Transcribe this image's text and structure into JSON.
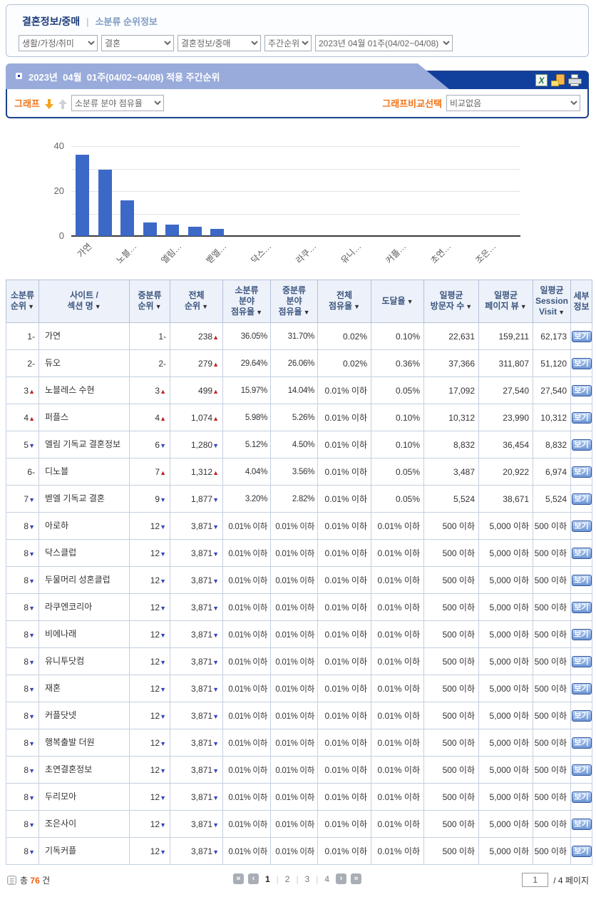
{
  "breadcrumb": {
    "category": "결혼정보/중매",
    "separator": "|",
    "section": "소분류 순위정보"
  },
  "filters": {
    "selects": [
      "생활/가정/취미",
      "결혼",
      "결혼정보/중매",
      "주간순위",
      "2023년 04월 01주(04/02~04/08)"
    ]
  },
  "panel": {
    "title": "2023년  04월  01주(04/02~04/08) 적용 주간순위",
    "icons": {
      "excel": "excel-icon",
      "excel_glyph": "X",
      "mail": "save-copy-icon",
      "print": "print-icon"
    },
    "graph_label": "그래프",
    "graph_select": "소분류 분야 점유율",
    "compare_label": "그래프비교선택",
    "compare_select": "비교없음"
  },
  "chart_data": {
    "type": "bar",
    "title": "",
    "xlabel": "",
    "ylabel": "",
    "categories": [
      "가연",
      "듀오",
      "노블레스 수현",
      "퍼플스",
      "엘림 기독교 결혼정보",
      "디노블",
      "벧엘 기독교 결혼",
      "아로하",
      "닥스클럽",
      "두물머리 성혼클럽",
      "라쿠엔코리아",
      "비에나래",
      "유니투닷컴",
      "재혼",
      "커플닷넷",
      "행복출발 더원",
      "초연결혼정보",
      "두리모아",
      "조은사이",
      "기독커플"
    ],
    "values": [
      36.05,
      29.64,
      15.97,
      5.98,
      5.12,
      4.04,
      3.2,
      0,
      0,
      0,
      0,
      0,
      0,
      0,
      0,
      0,
      0,
      0,
      0,
      0
    ],
    "tick_labels": [
      "가연",
      "노블…",
      "엘림…",
      "벧엘…",
      "닥스…",
      "라쿠…",
      "유니…",
      "커플…",
      "초연…",
      "조은…"
    ],
    "tick_indices": [
      0,
      2,
      4,
      6,
      8,
      10,
      12,
      14,
      16,
      18
    ],
    "ylim": [
      0,
      40
    ],
    "yticks": [
      0,
      20,
      40
    ],
    "gridlines": [
      0,
      10,
      20,
      30,
      40
    ],
    "bar_color": "#3c69c7",
    "legend": "none",
    "grid": true
  },
  "table": {
    "headers": [
      {
        "lines": [
          "소분류",
          "순위"
        ],
        "sort": true
      },
      {
        "lines": [
          "사이트 /",
          "섹션 명"
        ],
        "sort": true
      },
      {
        "lines": [
          "중분류",
          "순위"
        ],
        "sort": true
      },
      {
        "lines": [
          "전체",
          "순위"
        ],
        "sort": true
      },
      {
        "lines": [
          "소분류",
          "분야",
          "점유율"
        ],
        "sort": true
      },
      {
        "lines": [
          "중분류",
          "분야",
          "점유율"
        ],
        "sort": true
      },
      {
        "lines": [
          "전체",
          "점유율"
        ],
        "sort": true
      },
      {
        "lines": [
          "도달율"
        ],
        "sort": true
      },
      {
        "lines": [
          "일평균",
          "방문자 수"
        ],
        "sort": true
      },
      {
        "lines": [
          "일평균",
          "페이지 뷰"
        ],
        "sort": true
      },
      {
        "lines": [
          "일평균",
          "Session",
          "Visit"
        ],
        "sort": true
      },
      {
        "lines": [
          "세부",
          "정보"
        ],
        "sort": false
      }
    ],
    "view_label": "보기",
    "rows": [
      [
        "1",
        "-",
        "가연",
        "1",
        "-",
        "238",
        "u",
        "36.05%",
        "31.70%",
        "0.02%",
        "0.10%",
        "22,631",
        "159,211",
        "62,173"
      ],
      [
        "2",
        "-",
        "듀오",
        "2",
        "-",
        "279",
        "u",
        "29.64%",
        "26.06%",
        "0.02%",
        "0.36%",
        "37,366",
        "311,807",
        "51,120"
      ],
      [
        "3",
        "u",
        "노블레스 수현",
        "3",
        "u",
        "499",
        "u",
        "15.97%",
        "14.04%",
        "0.01% 이하",
        "0.05%",
        "17,092",
        "27,540",
        "27,540"
      ],
      [
        "4",
        "u",
        "퍼플스",
        "4",
        "u",
        "1,074",
        "u",
        "5.98%",
        "5.26%",
        "0.01% 이하",
        "0.10%",
        "10,312",
        "23,990",
        "10,312"
      ],
      [
        "5",
        "d",
        "엘림 기독교 결혼정보",
        "6",
        "d",
        "1,280",
        "d",
        "5.12%",
        "4.50%",
        "0.01% 이하",
        "0.10%",
        "8,832",
        "36,454",
        "8,832"
      ],
      [
        "6",
        "-",
        "디노블",
        "7",
        "u",
        "1,312",
        "u",
        "4.04%",
        "3.56%",
        "0.01% 이하",
        "0.05%",
        "3,487",
        "20,922",
        "6,974"
      ],
      [
        "7",
        "d",
        "벧엘 기독교 결혼",
        "9",
        "d",
        "1,877",
        "d",
        "3.20%",
        "2.82%",
        "0.01% 이하",
        "0.05%",
        "5,524",
        "38,671",
        "5,524"
      ],
      [
        "8",
        "d",
        "아로하",
        "12",
        "d",
        "3,871",
        "d",
        "0.01% 이하",
        "0.01% 이하",
        "0.01% 이하",
        "0.01% 이하",
        "500 이하",
        "5,000 이하",
        "500 이하"
      ],
      [
        "8",
        "d",
        "닥스클럽",
        "12",
        "d",
        "3,871",
        "d",
        "0.01% 이하",
        "0.01% 이하",
        "0.01% 이하",
        "0.01% 이하",
        "500 이하",
        "5,000 이하",
        "500 이하"
      ],
      [
        "8",
        "d",
        "두물머리 성혼클럽",
        "12",
        "d",
        "3,871",
        "d",
        "0.01% 이하",
        "0.01% 이하",
        "0.01% 이하",
        "0.01% 이하",
        "500 이하",
        "5,000 이하",
        "500 이하"
      ],
      [
        "8",
        "d",
        "라쿠엔코리아",
        "12",
        "d",
        "3,871",
        "d",
        "0.01% 이하",
        "0.01% 이하",
        "0.01% 이하",
        "0.01% 이하",
        "500 이하",
        "5,000 이하",
        "500 이하"
      ],
      [
        "8",
        "d",
        "비에나래",
        "12",
        "d",
        "3,871",
        "d",
        "0.01% 이하",
        "0.01% 이하",
        "0.01% 이하",
        "0.01% 이하",
        "500 이하",
        "5,000 이하",
        "500 이하"
      ],
      [
        "8",
        "d",
        "유니투닷컴",
        "12",
        "d",
        "3,871",
        "d",
        "0.01% 이하",
        "0.01% 이하",
        "0.01% 이하",
        "0.01% 이하",
        "500 이하",
        "5,000 이하",
        "500 이하"
      ],
      [
        "8",
        "d",
        "재혼",
        "12",
        "d",
        "3,871",
        "d",
        "0.01% 이하",
        "0.01% 이하",
        "0.01% 이하",
        "0.01% 이하",
        "500 이하",
        "5,000 이하",
        "500 이하"
      ],
      [
        "8",
        "d",
        "커플닷넷",
        "12",
        "d",
        "3,871",
        "d",
        "0.01% 이하",
        "0.01% 이하",
        "0.01% 이하",
        "0.01% 이하",
        "500 이하",
        "5,000 이하",
        "500 이하"
      ],
      [
        "8",
        "d",
        "행복출발 더원",
        "12",
        "d",
        "3,871",
        "d",
        "0.01% 이하",
        "0.01% 이하",
        "0.01% 이하",
        "0.01% 이하",
        "500 이하",
        "5,000 이하",
        "500 이하"
      ],
      [
        "8",
        "d",
        "초연결혼정보",
        "12",
        "d",
        "3,871",
        "d",
        "0.01% 이하",
        "0.01% 이하",
        "0.01% 이하",
        "0.01% 이하",
        "500 이하",
        "5,000 이하",
        "500 이하"
      ],
      [
        "8",
        "d",
        "두리모아",
        "12",
        "d",
        "3,871",
        "d",
        "0.01% 이하",
        "0.01% 이하",
        "0.01% 이하",
        "0.01% 이하",
        "500 이하",
        "5,000 이하",
        "500 이하"
      ],
      [
        "8",
        "d",
        "조은사이",
        "12",
        "d",
        "3,871",
        "d",
        "0.01% 이하",
        "0.01% 이하",
        "0.01% 이하",
        "0.01% 이하",
        "500 이하",
        "5,000 이하",
        "500 이하"
      ],
      [
        "8",
        "d",
        "기독커플",
        "12",
        "d",
        "3,871",
        "d",
        "0.01% 이하",
        "0.01% 이하",
        "0.01% 이하",
        "0.01% 이하",
        "500 이하",
        "5,000 이하",
        "500 이하"
      ]
    ]
  },
  "footer": {
    "total_label": "총",
    "total_count": "76",
    "total_unit": "건",
    "pages": [
      "1",
      "2",
      "3",
      "4"
    ],
    "current_page": "1",
    "page_input": "1",
    "page_suffix": "/ 4 페이지"
  }
}
